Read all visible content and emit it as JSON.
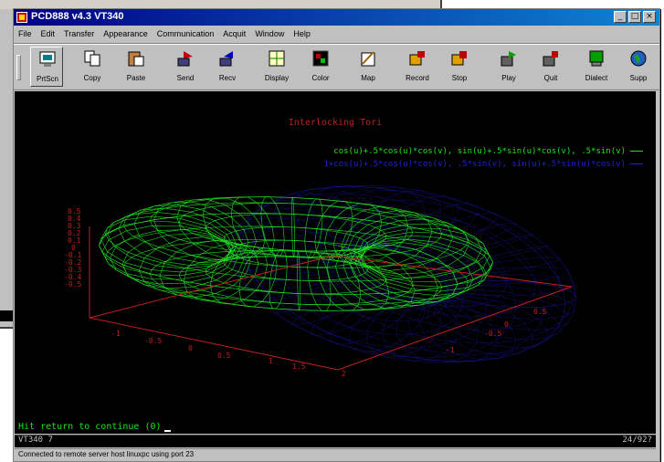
{
  "window": {
    "title": "PCD888 v4.3 VT340",
    "controls": [
      "_",
      "□",
      "×"
    ]
  },
  "menu": [
    "File",
    "Edit",
    "Transfer",
    "Appearance",
    "Communication",
    "Acquit",
    "Window",
    "Help"
  ],
  "toolbar": [
    {
      "label": "PrtScn",
      "icon": "print-screen-icon"
    },
    {
      "label": "Copy",
      "icon": "copy-icon"
    },
    {
      "label": "Paste",
      "icon": "paste-icon"
    },
    {
      "label": "Send",
      "icon": "send-icon"
    },
    {
      "label": "Recv",
      "icon": "receive-icon"
    },
    {
      "label": "Display",
      "icon": "display-icon"
    },
    {
      "label": "Color",
      "icon": "color-icon"
    },
    {
      "label": "Map",
      "icon": "map-icon"
    },
    {
      "label": "Record",
      "icon": "record-icon"
    },
    {
      "label": "Stop",
      "icon": "stop-icon"
    },
    {
      "label": "Play",
      "icon": "play-icon"
    },
    {
      "label": "Quit",
      "icon": "quit-icon"
    },
    {
      "label": "Dialect",
      "icon": "dialect-icon"
    },
    {
      "label": "Supp",
      "icon": "globe-icon"
    }
  ],
  "terminal": {
    "plot_title": "Interlocking Tori",
    "legend": [
      "cos(u)+.5*cos(u)*cos(v), sin(u)+.5*sin(u)*cos(v), .5*sin(v)",
      "1+cos(u)+.5*cos(u)*cos(v), .5*sin(v), sin(u)+.5*sin(u)*cos(v)"
    ],
    "z_ticks": [
      "0.5",
      "0.4",
      "0.3",
      "0.2",
      "0.1",
      "0",
      "-0.1",
      "-0.2",
      "-0.3",
      "-0.4",
      "-0.5"
    ],
    "x_ticks": [
      "-1",
      "-0.5",
      "0",
      "0.5",
      "1",
      "1.5",
      "2"
    ],
    "y_ticks": [
      "-1",
      "-0.5",
      "0",
      "0.5"
    ],
    "prompt": "Hit return to continue (0)"
  },
  "colors": {
    "series1": "#20e020",
    "series2": "#2020e0",
    "axes": "#c02020"
  },
  "infobar": {
    "left": "VT340 7",
    "right": "24/92?"
  },
  "status": "Connected to remote server host linuxpc using port 23"
}
